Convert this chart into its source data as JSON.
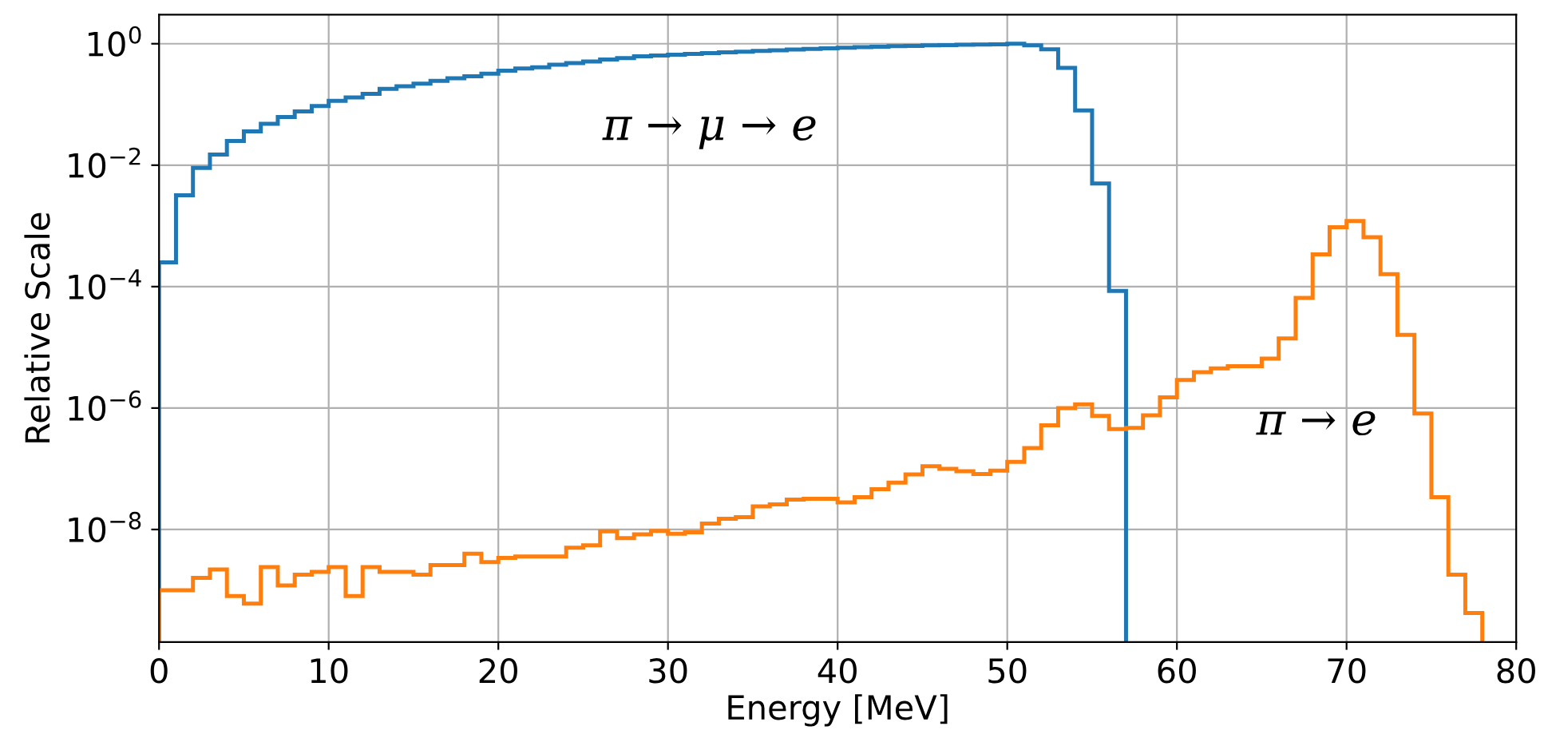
{
  "chart_data": {
    "type": "histogram",
    "xlabel": "Energy [MeV]",
    "ylabel": "Relative Scale",
    "log": "y",
    "grid": true,
    "xlim": [
      0,
      80
    ],
    "xticks": [
      0,
      10,
      20,
      30,
      40,
      50,
      60,
      70,
      80
    ],
    "ylim": [
      1.4e-10,
      3
    ],
    "yticks": [
      {
        "value": 1e-08,
        "label": "10$^{−8}$"
      },
      {
        "value": 1e-06,
        "label": "10$^{−6}$"
      },
      {
        "value": 0.0001,
        "label": "10$^{−4}$"
      },
      {
        "value": 0.01,
        "label": "10$^{−2}$"
      },
      {
        "value": 1,
        "label": "10$^{0}$"
      }
    ],
    "bins": [
      0,
      1,
      2,
      3,
      4,
      5,
      6,
      7,
      8,
      9,
      10,
      11,
      12,
      13,
      14,
      15,
      16,
      17,
      18,
      19,
      20,
      21,
      22,
      23,
      24,
      25,
      26,
      27,
      28,
      29,
      30,
      31,
      32,
      33,
      34,
      35,
      36,
      37,
      38,
      39,
      40,
      41,
      42,
      43,
      44,
      45,
      46,
      47,
      48,
      49,
      50,
      51,
      52,
      53,
      54,
      55,
      56,
      57,
      58,
      59,
      60,
      61,
      62,
      63,
      64,
      65,
      66,
      67,
      68,
      69,
      70,
      71,
      72,
      73,
      74,
      75,
      76,
      77,
      78
    ],
    "series": [
      {
        "color": "#1f77b4",
        "bins": [
          0,
          1,
          2,
          3,
          4,
          5,
          6,
          7,
          8,
          9,
          10,
          11,
          12,
          13,
          14,
          15,
          16,
          17,
          18,
          19,
          20,
          21,
          22,
          23,
          24,
          25,
          26,
          27,
          28,
          29,
          30,
          31,
          32,
          33,
          34,
          35,
          36,
          37,
          38,
          39,
          40,
          41,
          42,
          43,
          44,
          45,
          46,
          47,
          48,
          49,
          50,
          51,
          52,
          53,
          54,
          55,
          56,
          57
        ],
        "values": [
          0.00025,
          0.0032,
          0.009,
          0.015,
          0.025,
          0.036,
          0.048,
          0.062,
          0.077,
          0.094,
          0.115,
          0.13,
          0.15,
          0.18,
          0.2,
          0.22,
          0.245,
          0.27,
          0.29,
          0.32,
          0.36,
          0.39,
          0.41,
          0.45,
          0.48,
          0.51,
          0.55,
          0.58,
          0.62,
          0.64,
          0.66,
          0.68,
          0.7,
          0.72,
          0.74,
          0.76,
          0.78,
          0.8,
          0.82,
          0.84,
          0.86,
          0.88,
          0.89,
          0.91,
          0.92,
          0.94,
          0.95,
          0.96,
          0.97,
          0.98,
          1.0,
          0.94,
          0.81,
          0.4,
          0.08,
          0.005,
          8.5e-05
        ]
      },
      {
        "color": "#ff7f0e",
        "values": [
          1e-09,
          1e-09,
          1.6e-09,
          2.2e-09,
          8e-10,
          6e-10,
          2.4e-09,
          1.2e-09,
          1.8e-09,
          2e-09,
          2.4e-09,
          8e-10,
          2.4e-09,
          2e-09,
          2e-09,
          1.8e-09,
          2.6e-09,
          2.6e-09,
          4e-09,
          2.9e-09,
          3.4e-09,
          3.6e-09,
          3.6e-09,
          3.6e-09,
          5e-09,
          5.5e-09,
          9.3e-09,
          7.2e-09,
          8.3e-09,
          9.5e-09,
          8.5e-09,
          9e-09,
          1.25e-08,
          1.5e-08,
          1.6e-08,
          2.4e-08,
          2.6e-08,
          3.1e-08,
          3.2e-08,
          3.2e-08,
          2.8e-08,
          3.4e-08,
          4.6e-08,
          5.9e-08,
          8.1e-08,
          1.1e-07,
          1e-07,
          9.1e-08,
          8.2e-08,
          9.3e-08,
          1.3e-07,
          2.2e-07,
          5.2e-07,
          1e-06,
          1.15e-06,
          7.4e-07,
          4.5e-07,
          4.7e-07,
          7.6e-07,
          1.5e-06,
          2.9e-06,
          3.9e-06,
          4.5e-06,
          4.9e-06,
          4.9e-06,
          6.5e-06,
          1.4e-05,
          6.5e-05,
          0.00034,
          0.00095,
          0.0012,
          0.00065,
          0.00016,
          1.6e-05,
          8.1e-07,
          3.4e-08,
          1.8e-09,
          4.2e-10
        ]
      }
    ],
    "annotations": [
      "π → μ → e",
      "π → e"
    ]
  }
}
